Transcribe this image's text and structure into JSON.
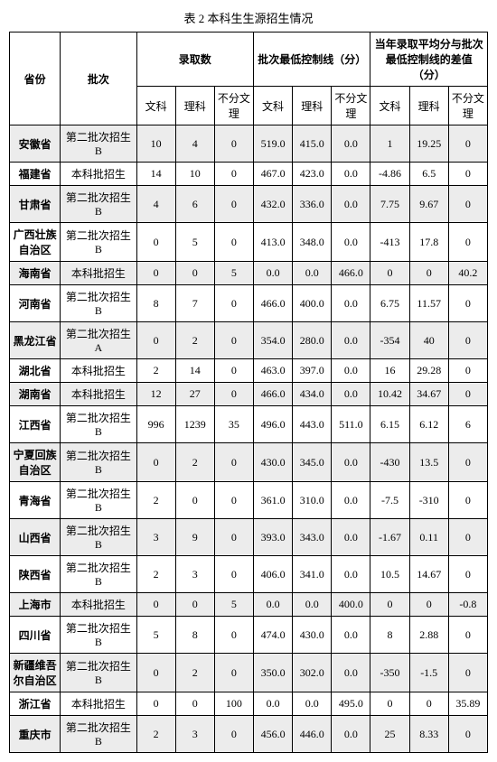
{
  "title": "表 2 本科生生源招生情况",
  "header": {
    "province": "省份",
    "batch": "批次",
    "group_admit": "录取数",
    "group_minline": "批次最低控制线（分）",
    "group_diff": "当年录取平均分与批次最低控制线的差值（分）",
    "wen": "文科",
    "li": "理科",
    "bufen": "不分文理"
  },
  "rows": [
    {
      "prov": "安徽省",
      "batch": "第二批次招生 B",
      "a": [
        "10",
        "4",
        "0"
      ],
      "m": [
        "519.0",
        "415.0",
        "0.0"
      ],
      "d": [
        "1",
        "19.25",
        "0"
      ]
    },
    {
      "prov": "福建省",
      "batch": "本科批招生",
      "a": [
        "14",
        "10",
        "0"
      ],
      "m": [
        "467.0",
        "423.0",
        "0.0"
      ],
      "d": [
        "-4.86",
        "6.5",
        "0"
      ]
    },
    {
      "prov": "甘肃省",
      "batch": "第二批次招生 B",
      "a": [
        "4",
        "6",
        "0"
      ],
      "m": [
        "432.0",
        "336.0",
        "0.0"
      ],
      "d": [
        "7.75",
        "9.67",
        "0"
      ]
    },
    {
      "prov": "广西壮族自治区",
      "batch": "第二批次招生 B",
      "a": [
        "0",
        "5",
        "0"
      ],
      "m": [
        "413.0",
        "348.0",
        "0.0"
      ],
      "d": [
        "-413",
        "17.8",
        "0"
      ]
    },
    {
      "prov": "海南省",
      "batch": "本科批招生",
      "a": [
        "0",
        "0",
        "5"
      ],
      "m": [
        "0.0",
        "0.0",
        "466.0"
      ],
      "d": [
        "0",
        "0",
        "40.2"
      ]
    },
    {
      "prov": "河南省",
      "batch": "第二批次招生 B",
      "a": [
        "8",
        "7",
        "0"
      ],
      "m": [
        "466.0",
        "400.0",
        "0.0"
      ],
      "d": [
        "6.75",
        "11.57",
        "0"
      ]
    },
    {
      "prov": "黑龙江省",
      "batch": "第二批次招生 A",
      "a": [
        "0",
        "2",
        "0"
      ],
      "m": [
        "354.0",
        "280.0",
        "0.0"
      ],
      "d": [
        "-354",
        "40",
        "0"
      ]
    },
    {
      "prov": "湖北省",
      "batch": "本科批招生",
      "a": [
        "2",
        "14",
        "0"
      ],
      "m": [
        "463.0",
        "397.0",
        "0.0"
      ],
      "d": [
        "16",
        "29.28",
        "0"
      ]
    },
    {
      "prov": "湖南省",
      "batch": "本科批招生",
      "a": [
        "12",
        "27",
        "0"
      ],
      "m": [
        "466.0",
        "434.0",
        "0.0"
      ],
      "d": [
        "10.42",
        "34.67",
        "0"
      ]
    },
    {
      "prov": "江西省",
      "batch": "第二批次招生 B",
      "a": [
        "996",
        "1239",
        "35"
      ],
      "m": [
        "496.0",
        "443.0",
        "511.0"
      ],
      "d": [
        "6.15",
        "6.12",
        "6"
      ]
    },
    {
      "prov": "宁夏回族自治区",
      "batch": "第二批次招生 B",
      "a": [
        "0",
        "2",
        "0"
      ],
      "m": [
        "430.0",
        "345.0",
        "0.0"
      ],
      "d": [
        "-430",
        "13.5",
        "0"
      ]
    },
    {
      "prov": "青海省",
      "batch": "第二批次招生 B",
      "a": [
        "2",
        "0",
        "0"
      ],
      "m": [
        "361.0",
        "310.0",
        "0.0"
      ],
      "d": [
        "-7.5",
        "-310",
        "0"
      ]
    },
    {
      "prov": "山西省",
      "batch": "第二批次招生 B",
      "a": [
        "3",
        "9",
        "0"
      ],
      "m": [
        "393.0",
        "343.0",
        "0.0"
      ],
      "d": [
        "-1.67",
        "0.11",
        "0"
      ]
    },
    {
      "prov": "陕西省",
      "batch": "第二批次招生 B",
      "a": [
        "2",
        "3",
        "0"
      ],
      "m": [
        "406.0",
        "341.0",
        "0.0"
      ],
      "d": [
        "10.5",
        "14.67",
        "0"
      ]
    },
    {
      "prov": "上海市",
      "batch": "本科批招生",
      "a": [
        "0",
        "0",
        "5"
      ],
      "m": [
        "0.0",
        "0.0",
        "400.0"
      ],
      "d": [
        "0",
        "0",
        "-0.8"
      ]
    },
    {
      "prov": "四川省",
      "batch": "第二批次招生 B",
      "a": [
        "5",
        "8",
        "0"
      ],
      "m": [
        "474.0",
        "430.0",
        "0.0"
      ],
      "d": [
        "8",
        "2.88",
        "0"
      ]
    },
    {
      "prov": "新疆维吾尔自治区",
      "batch": "第二批次招生 B",
      "a": [
        "0",
        "2",
        "0"
      ],
      "m": [
        "350.0",
        "302.0",
        "0.0"
      ],
      "d": [
        "-350",
        "-1.5",
        "0"
      ]
    },
    {
      "prov": "浙江省",
      "batch": "本科批招生",
      "a": [
        "0",
        "0",
        "100"
      ],
      "m": [
        "0.0",
        "0.0",
        "495.0"
      ],
      "d": [
        "0",
        "0",
        "35.89"
      ]
    },
    {
      "prov": "重庆市",
      "batch": "第二批次招生 B",
      "a": [
        "2",
        "3",
        "0"
      ],
      "m": [
        "456.0",
        "446.0",
        "0.0"
      ],
      "d": [
        "25",
        "8.33",
        "0"
      ]
    }
  ]
}
